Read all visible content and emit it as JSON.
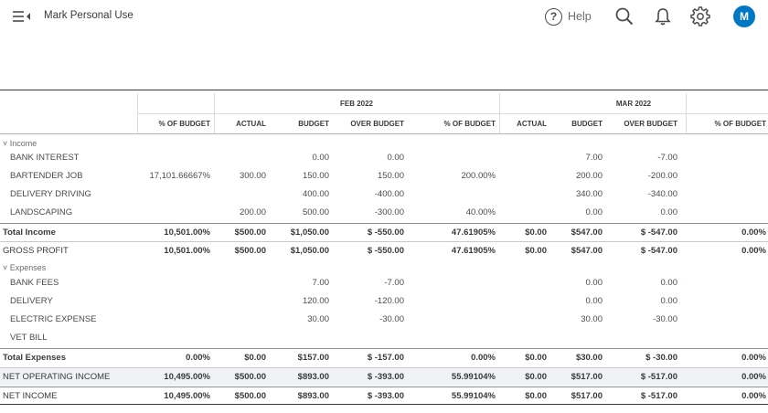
{
  "header": {
    "company_name": "Mark Personal Use",
    "help_label": "Help",
    "help_glyph": "?",
    "avatar_initial": "M",
    "accent_color": "#0077c5"
  },
  "periods": [
    "FEB 2022",
    "MAR 2022"
  ],
  "columns": [
    "% OF BUDGET",
    "ACTUAL",
    "BUDGET",
    "OVER BUDGET",
    "% OF BUDGET",
    "ACTUAL",
    "BUDGET",
    "OVER BUDGET",
    "% OF BUDGET"
  ],
  "rows": [
    {
      "label": "Income",
      "style": "section",
      "cells": [
        "",
        "",
        "",
        "",
        "",
        "",
        "",
        "",
        ""
      ]
    },
    {
      "label": "BANK INTEREST",
      "style": "item",
      "cells": [
        "",
        "",
        "0.00",
        "0.00",
        "",
        "",
        "7.00",
        "-7.00",
        ""
      ]
    },
    {
      "label": "BARTENDER JOB",
      "style": "item",
      "cells": [
        "17,101.66667%",
        "300.00",
        "150.00",
        "150.00",
        "200.00%",
        "",
        "200.00",
        "-200.00",
        ""
      ]
    },
    {
      "label": "DELIVERY DRIVING",
      "style": "item",
      "cells": [
        "",
        "",
        "400.00",
        "-400.00",
        "",
        "",
        "340.00",
        "-340.00",
        ""
      ]
    },
    {
      "label": "LANDSCAPING",
      "style": "item",
      "cells": [
        "",
        "200.00",
        "500.00",
        "-300.00",
        "40.00%",
        "",
        "0.00",
        "0.00",
        ""
      ]
    },
    {
      "label": "Total Income",
      "style": "total",
      "cells": [
        "10,501.00%",
        "$500.00",
        "$1,050.00",
        "$ -550.00",
        "47.61905%",
        "$0.00",
        "$547.00",
        "$ -547.00",
        "0.00%"
      ]
    },
    {
      "label": "GROSS PROFIT",
      "style": "gross",
      "cells": [
        "10,501.00%",
        "$500.00",
        "$1,050.00",
        "$ -550.00",
        "47.61905%",
        "$0.00",
        "$547.00",
        "$ -547.00",
        "0.00%"
      ]
    },
    {
      "label": "Expenses",
      "style": "section",
      "cells": [
        "",
        "",
        "",
        "",
        "",
        "",
        "",
        "",
        ""
      ]
    },
    {
      "label": "BANK FEES",
      "style": "item",
      "cells": [
        "",
        "",
        "7.00",
        "-7.00",
        "",
        "",
        "0.00",
        "0.00",
        ""
      ]
    },
    {
      "label": "DELIVERY",
      "style": "item",
      "cells": [
        "",
        "",
        "120.00",
        "-120.00",
        "",
        "",
        "0.00",
        "0.00",
        ""
      ]
    },
    {
      "label": "ELECTRIC EXPENSE",
      "style": "item",
      "cells": [
        "",
        "",
        "30.00",
        "-30.00",
        "",
        "",
        "30.00",
        "-30.00",
        ""
      ]
    },
    {
      "label": "VET BILL",
      "style": "item",
      "cells": [
        "",
        "",
        "",
        "",
        "",
        "",
        "",
        "",
        ""
      ]
    },
    {
      "label": "Total Expenses",
      "style": "total",
      "cells": [
        "0.00%",
        "$0.00",
        "$157.00",
        "$ -157.00",
        "0.00%",
        "$0.00",
        "$30.00",
        "$ -30.00",
        "0.00%"
      ]
    },
    {
      "label": "NET OPERATING INCOME",
      "style": "noi",
      "cells": [
        "10,495.00%",
        "$500.00",
        "$893.00",
        "$ -393.00",
        "55.99104%",
        "$0.00",
        "$517.00",
        "$ -517.00",
        "0.00%"
      ]
    },
    {
      "label": "NET INCOME",
      "style": "net",
      "cells": [
        "10,495.00%",
        "$500.00",
        "$893.00",
        "$ -393.00",
        "55.99104%",
        "$0.00",
        "$517.00",
        "$ -517.00",
        "0.00%"
      ]
    }
  ]
}
